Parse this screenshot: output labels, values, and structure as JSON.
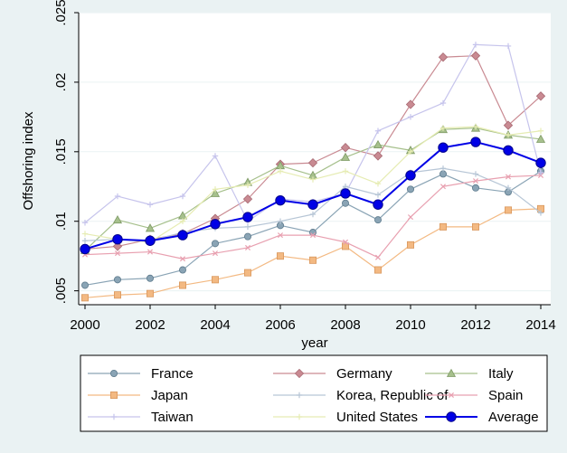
{
  "chart_data": {
    "type": "line",
    "xlabel": "year",
    "ylabel": "Offshoring index",
    "xlim": [
      2000,
      2014
    ],
    "ylim": [
      0.004,
      0.025
    ],
    "x_ticks": [
      2000,
      2002,
      2004,
      2006,
      2008,
      2010,
      2012,
      2014
    ],
    "x_tick_labels": [
      "2000",
      "2002",
      "2004",
      "2006",
      "2008",
      "2010",
      "2012",
      "2014"
    ],
    "y_ticks": [
      0.005,
      0.01,
      0.015,
      0.02,
      0.025
    ],
    "y_tick_labels": [
      ".005",
      ".01",
      ".015",
      ".02",
      ".025"
    ],
    "grid": true,
    "legend_position": "bottom",
    "x": [
      2000,
      2001,
      2002,
      2003,
      2004,
      2005,
      2006,
      2007,
      2008,
      2009,
      2010,
      2011,
      2012,
      2013,
      2014
    ],
    "series": [
      {
        "name": "France",
        "color": "#8aa4b5",
        "marker": "circle",
        "values": [
          0.0054,
          0.0058,
          0.0059,
          0.0065,
          0.0084,
          0.0089,
          0.0097,
          0.0092,
          0.0113,
          0.0101,
          0.0123,
          0.0134,
          0.0124,
          0.0121,
          0.0136
        ]
      },
      {
        "name": "Germany",
        "color": "#c98a92",
        "marker": "diamond",
        "values": [
          0.008,
          0.0082,
          0.0087,
          0.0091,
          0.0102,
          0.0116,
          0.0141,
          0.0142,
          0.0153,
          0.0147,
          0.0184,
          0.0218,
          0.0219,
          0.0169,
          0.019
        ]
      },
      {
        "name": "Italy",
        "color": "#a6c08c",
        "marker": "triangle",
        "values": [
          0.0079,
          0.0101,
          0.0095,
          0.0104,
          0.012,
          0.0128,
          0.014,
          0.0133,
          0.0146,
          0.0155,
          0.0151,
          0.0166,
          0.0167,
          0.0162,
          0.0159
        ]
      },
      {
        "name": "Japan",
        "color": "#f3b982",
        "marker": "square",
        "values": [
          0.0045,
          0.0047,
          0.0048,
          0.0054,
          0.0058,
          0.0063,
          0.0075,
          0.0072,
          0.0082,
          0.0065,
          0.0083,
          0.0096,
          0.0096,
          0.0108,
          0.0109
        ]
      },
      {
        "name": "Korea, Republic of",
        "color": "#b7c6d6",
        "marker": "plus",
        "values": [
          0.0086,
          0.0087,
          0.0086,
          0.0092,
          0.0095,
          0.0096,
          0.01,
          0.0105,
          0.0125,
          0.0119,
          0.0135,
          0.0138,
          0.0134,
          0.0124,
          0.0106
        ]
      },
      {
        "name": "Spain",
        "color": "#e8a0b0",
        "marker": "x",
        "values": [
          0.0076,
          0.0077,
          0.0078,
          0.0073,
          0.0077,
          0.0081,
          0.009,
          0.009,
          0.0085,
          0.0074,
          0.0103,
          0.0125,
          0.0129,
          0.0132,
          0.0133
        ]
      },
      {
        "name": "Taiwan",
        "color": "#c6c4ec",
        "marker": "plus",
        "values": [
          0.0099,
          0.0118,
          0.0112,
          0.0118,
          0.0147,
          0.01,
          0.0116,
          0.0114,
          0.012,
          0.0165,
          0.0175,
          0.0185,
          0.0227,
          0.0226,
          0.0135
        ]
      },
      {
        "name": "United States",
        "color": "#e6ecb3",
        "marker": "plus",
        "values": [
          0.0091,
          0.0087,
          0.0085,
          0.01,
          0.0123,
          0.0126,
          0.0136,
          0.013,
          0.0136,
          0.0127,
          0.015,
          0.0167,
          0.0168,
          0.0162,
          0.0165
        ]
      },
      {
        "name": "Average",
        "color": "#0000e6",
        "marker": "circle-bold",
        "values": [
          0.008,
          0.0087,
          0.0086,
          0.009,
          0.0098,
          0.0103,
          0.0115,
          0.0112,
          0.012,
          0.0112,
          0.0133,
          0.0153,
          0.0157,
          0.0151,
          0.0142
        ]
      }
    ]
  }
}
